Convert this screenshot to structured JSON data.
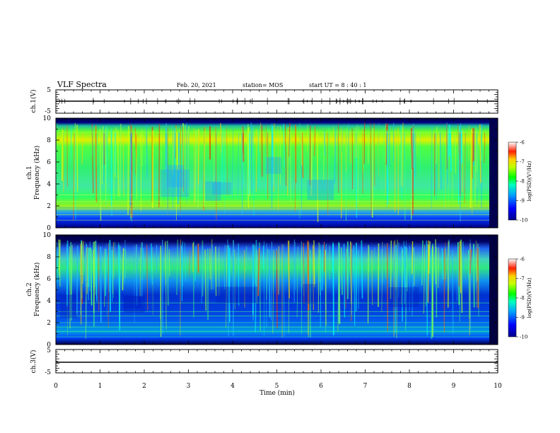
{
  "header": {
    "title": "VLF Spectra",
    "date": "Feb. 20, 2021",
    "station": "station= MOS",
    "start": "start  UT =   8 : 40 : 1"
  },
  "chart_data": [
    {
      "type": "line",
      "panel": "ch1-waveform",
      "ylabel": "ch.1(V)",
      "ylim": [
        -5,
        5
      ],
      "yticks": [
        "5",
        "-5"
      ],
      "series": [
        {
          "x": [
            0,
            10
          ],
          "y": [
            0,
            0
          ]
        }
      ]
    },
    {
      "type": "heatmap",
      "panel": "ch1-spectrogram",
      "ylabel": "ch.1",
      "ylabel2": "Frequency (kHz)",
      "ylim": [
        0,
        10
      ],
      "yticks": [
        "0",
        "2",
        "4",
        "6",
        "8",
        "10"
      ],
      "colorbar": {
        "label": "log(PSD)(V²/Hz)",
        "ticks": [
          "-6",
          "-7",
          "-8",
          "-9",
          "-10"
        ],
        "range": [
          -10,
          -6
        ]
      }
    },
    {
      "type": "heatmap",
      "panel": "ch2-spectrogram",
      "ylabel": "ch.2",
      "ylabel2": "Frequency (kHz)",
      "ylim": [
        0,
        10
      ],
      "yticks": [
        "0",
        "2",
        "4",
        "6",
        "8",
        "10"
      ],
      "colorbar": {
        "label": "log(PSD)(V²/Hz)",
        "ticks": [
          "-6",
          "-7",
          "-8",
          "-9",
          "-10"
        ],
        "range": [
          -10,
          -6
        ]
      }
    },
    {
      "type": "line",
      "panel": "ch3-waveform",
      "ylabel": "ch.3(V)",
      "ylim": [
        -5,
        5
      ],
      "yticks": [
        "5",
        "-5"
      ],
      "series": [
        {
          "x": [
            0,
            10
          ],
          "y": [
            0,
            0
          ]
        }
      ]
    }
  ],
  "xaxis": {
    "label": "Time  (min)",
    "ticks": [
      "0",
      "1",
      "2",
      "3",
      "4",
      "5",
      "6",
      "7",
      "8",
      "9",
      "10"
    ],
    "range": [
      0,
      10
    ]
  }
}
